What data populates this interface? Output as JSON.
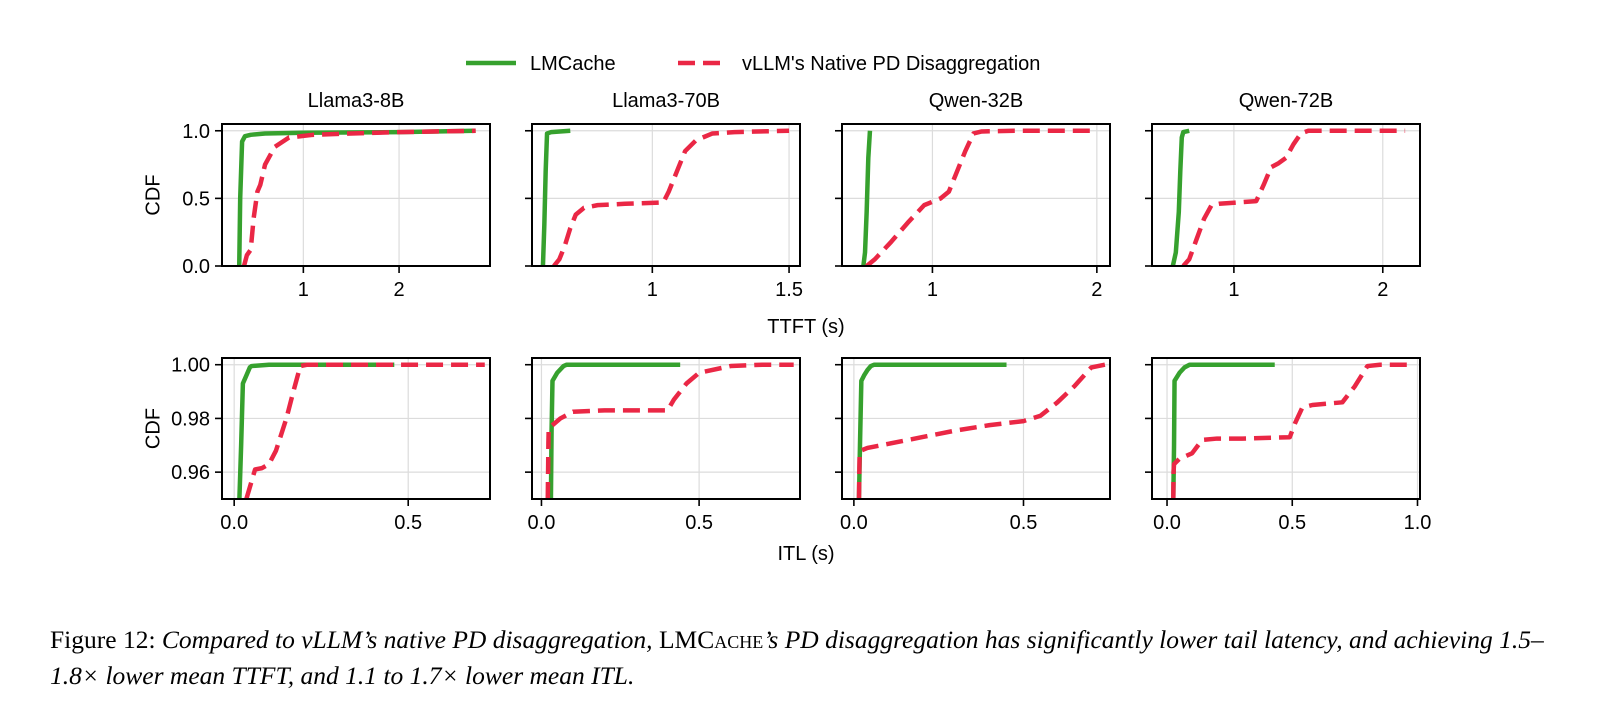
{
  "legend": {
    "items": [
      {
        "label": "LMCache",
        "color": "#36a12e",
        "dash": "solid"
      },
      {
        "label": "vLLM's Native PD Disaggregation",
        "color": "#ea2745",
        "dash": "dashed"
      }
    ],
    "placement": "top-center"
  },
  "chart_data": [
    {
      "type": "line",
      "title": "Llama3-8B",
      "row": "TTFT",
      "ylabel": "CDF",
      "xlabel": "",
      "xlim": [
        0.15,
        2.95
      ],
      "ylim": [
        0,
        1.05
      ],
      "xticks": [
        1,
        2
      ],
      "yticks": [
        0.0,
        0.5,
        1.0
      ],
      "ytick_labels": [
        "0.0",
        "0.5",
        "1.0"
      ],
      "grid": true,
      "series": [
        {
          "name": "LMCache",
          "x": [
            0.33,
            0.34,
            0.36,
            0.39,
            0.45,
            0.6,
            1.0,
            2.0,
            2.8
          ],
          "y": [
            0,
            0.5,
            0.92,
            0.96,
            0.97,
            0.98,
            0.985,
            0.99,
            1.0
          ]
        },
        {
          "name": "vLLM's Native PD Disaggregation",
          "x": [
            0.38,
            0.41,
            0.45,
            0.48,
            0.52,
            0.55,
            0.6,
            0.7,
            0.85,
            1.1,
            1.5,
            2.0,
            2.8
          ],
          "y": [
            0,
            0.08,
            0.12,
            0.35,
            0.55,
            0.6,
            0.75,
            0.88,
            0.95,
            0.97,
            0.98,
            0.99,
            1.0
          ]
        }
      ]
    },
    {
      "type": "line",
      "title": "Llama3-70B",
      "row": "TTFT",
      "ylabel": "",
      "xlabel": "",
      "xlim": [
        0.56,
        1.54
      ],
      "ylim": [
        0,
        1.05
      ],
      "xticks": [
        1.0,
        1.5
      ],
      "yticks": [
        0.0,
        0.5,
        1.0
      ],
      "grid": true,
      "series": [
        {
          "name": "LMCache",
          "x": [
            0.6,
            0.605,
            0.61,
            0.615,
            0.63,
            0.7
          ],
          "y": [
            0,
            0.3,
            0.7,
            0.98,
            0.99,
            1.0
          ]
        },
        {
          "name": "vLLM's Native PD Disaggregation",
          "x": [
            0.64,
            0.66,
            0.68,
            0.7,
            0.72,
            0.75,
            0.8,
            0.9,
            1.04,
            1.06,
            1.09,
            1.12,
            1.16,
            1.22,
            1.3,
            1.5
          ],
          "y": [
            0,
            0.05,
            0.15,
            0.28,
            0.38,
            0.43,
            0.45,
            0.46,
            0.47,
            0.55,
            0.7,
            0.85,
            0.93,
            0.98,
            0.99,
            1.0
          ]
        }
      ]
    },
    {
      "type": "line",
      "title": "Qwen-32B",
      "row": "TTFT",
      "ylabel": "",
      "xlabel": "",
      "xlim": [
        0.45,
        2.08
      ],
      "ylim": [
        0,
        1.05
      ],
      "xticks": [
        1,
        2
      ],
      "yticks": [
        0.0,
        0.5,
        1.0
      ],
      "grid": true,
      "series": [
        {
          "name": "LMCache",
          "x": [
            0.58,
            0.59,
            0.6,
            0.61,
            0.62
          ],
          "y": [
            0,
            0.1,
            0.4,
            0.8,
            1.0
          ]
        },
        {
          "name": "vLLM's Native PD Disaggregation",
          "x": [
            0.6,
            0.65,
            0.75,
            0.85,
            0.95,
            1.05,
            1.1,
            1.15,
            1.2,
            1.25,
            1.3,
            1.5,
            2.0
          ],
          "y": [
            0,
            0.05,
            0.18,
            0.32,
            0.45,
            0.5,
            0.55,
            0.7,
            0.85,
            0.98,
            0.995,
            1.0,
            1.0
          ]
        }
      ]
    },
    {
      "type": "line",
      "title": "Qwen-72B",
      "row": "TTFT",
      "ylabel": "",
      "xlabel": "",
      "xlim": [
        0.45,
        2.25
      ],
      "ylim": [
        0,
        1.05
      ],
      "xticks": [
        1,
        2
      ],
      "yticks": [
        0.0,
        0.5,
        1.0
      ],
      "grid": true,
      "series": [
        {
          "name": "LMCache",
          "x": [
            0.59,
            0.61,
            0.63,
            0.64,
            0.65,
            0.66,
            0.7
          ],
          "y": [
            0,
            0.1,
            0.4,
            0.7,
            0.95,
            0.99,
            1.0
          ]
        },
        {
          "name": "vLLM's Native PD Disaggregation",
          "x": [
            0.66,
            0.7,
            0.75,
            0.8,
            0.85,
            0.9,
            1.15,
            1.2,
            1.25,
            1.3,
            1.35,
            1.4,
            1.45,
            1.5,
            1.7,
            2.15
          ],
          "y": [
            0,
            0.05,
            0.2,
            0.35,
            0.45,
            0.46,
            0.48,
            0.6,
            0.73,
            0.76,
            0.8,
            0.9,
            0.98,
            1.0,
            1.0,
            1.0
          ]
        }
      ]
    },
    {
      "type": "line",
      "title": "",
      "row": "ITL",
      "ylabel": "CDF",
      "xlabel": "",
      "xlim": [
        -0.035,
        0.735
      ],
      "ylim": [
        0.95,
        1.0025
      ],
      "xticks": [
        0.0,
        0.5
      ],
      "yticks": [
        0.96,
        0.98,
        1.0
      ],
      "ytick_labels": [
        "0.96",
        "0.98",
        "1.00"
      ],
      "grid": true,
      "series": [
        {
          "name": "LMCache",
          "x": [
            0.015,
            0.02,
            0.025,
            0.035,
            0.045,
            0.05,
            0.1,
            0.25,
            0.46
          ],
          "y": [
            0.95,
            0.97,
            0.993,
            0.996,
            0.999,
            0.9995,
            1.0,
            1.0,
            1.0
          ]
        },
        {
          "name": "vLLM's Native PD Disaggregation",
          "x": [
            0.035,
            0.06,
            0.08,
            0.1,
            0.12,
            0.15,
            0.17,
            0.19,
            0.21,
            0.3,
            0.5,
            0.72
          ],
          "y": [
            0.95,
            0.961,
            0.9615,
            0.963,
            0.968,
            0.98,
            0.99,
            0.9995,
            1.0,
            1.0,
            1.0,
            1.0
          ]
        }
      ]
    },
    {
      "type": "line",
      "title": "",
      "row": "ITL",
      "ylabel": "",
      "xlabel": "",
      "xlim": [
        -0.03,
        0.82
      ],
      "ylim": [
        0.95,
        1.0025
      ],
      "xticks": [
        0.0,
        0.5
      ],
      "yticks": [
        0.96,
        0.98,
        1.0
      ],
      "grid": true,
      "series": [
        {
          "name": "LMCache",
          "x": [
            0.03,
            0.032,
            0.035,
            0.05,
            0.07,
            0.08,
            0.2,
            0.44
          ],
          "y": [
            0.95,
            0.975,
            0.994,
            0.997,
            0.9995,
            1.0,
            1.0,
            1.0
          ]
        },
        {
          "name": "vLLM's Native PD Disaggregation",
          "x": [
            0.02,
            0.021,
            0.022,
            0.023,
            0.03,
            0.06,
            0.1,
            0.2,
            0.4,
            0.42,
            0.46,
            0.5,
            0.6,
            0.7,
            0.8
          ],
          "y": [
            0.95,
            0.96,
            0.971,
            0.976,
            0.977,
            0.98,
            0.9825,
            0.983,
            0.983,
            0.987,
            0.993,
            0.997,
            0.9995,
            1.0,
            1.0
          ]
        }
      ]
    },
    {
      "type": "line",
      "title": "",
      "row": "ITL",
      "ylabel": "",
      "xlabel": "",
      "xlim": [
        -0.035,
        0.755
      ],
      "ylim": [
        0.95,
        1.0025
      ],
      "xticks": [
        0.0,
        0.5
      ],
      "yticks": [
        0.96,
        0.98,
        1.0
      ],
      "grid": true,
      "series": [
        {
          "name": "LMCache",
          "x": [
            0.015,
            0.018,
            0.022,
            0.03,
            0.04,
            0.05,
            0.06,
            0.2,
            0.45
          ],
          "y": [
            0.95,
            0.97,
            0.994,
            0.996,
            0.998,
            0.9995,
            1.0,
            1.0,
            1.0
          ]
        },
        {
          "name": "vLLM's Native PD Disaggregation",
          "x": [
            0.015,
            0.016,
            0.017,
            0.02,
            0.04,
            0.1,
            0.2,
            0.3,
            0.4,
            0.5,
            0.55,
            0.6,
            0.65,
            0.7,
            0.74
          ],
          "y": [
            0.95,
            0.96,
            0.967,
            0.968,
            0.969,
            0.9705,
            0.973,
            0.9755,
            0.9775,
            0.979,
            0.981,
            0.986,
            0.992,
            0.999,
            1.0
          ]
        }
      ]
    },
    {
      "type": "line",
      "title": "",
      "row": "ITL",
      "ylabel": "",
      "xlabel": "",
      "xlim": [
        -0.06,
        1.01
      ],
      "ylim": [
        0.95,
        1.0025
      ],
      "xticks": [
        0.0,
        0.5,
        1.0
      ],
      "yticks": [
        0.96,
        0.98,
        1.0
      ],
      "grid": true,
      "series": [
        {
          "name": "LMCache",
          "x": [
            0.025,
            0.028,
            0.03,
            0.05,
            0.07,
            0.09,
            0.2,
            0.43
          ],
          "y": [
            0.95,
            0.97,
            0.994,
            0.997,
            0.999,
            1.0,
            1.0,
            1.0
          ]
        },
        {
          "name": "vLLM's Native PD Disaggregation",
          "x": [
            0.025,
            0.026,
            0.028,
            0.05,
            0.1,
            0.14,
            0.2,
            0.3,
            0.49,
            0.51,
            0.54,
            0.58,
            0.7,
            0.75,
            0.8,
            0.85,
            0.97
          ],
          "y": [
            0.95,
            0.96,
            0.963,
            0.965,
            0.967,
            0.972,
            0.9725,
            0.9725,
            0.973,
            0.978,
            0.984,
            0.985,
            0.986,
            0.992,
            0.9995,
            1.0,
            1.0
          ]
        }
      ]
    }
  ],
  "axis_labels": {
    "ttft_xlabel": "TTFT (s)",
    "itl_xlabel": "ITL (s)"
  },
  "caption": {
    "label": "Figure 12:",
    "text1": " Compared to vLLM’s native PD disaggregation, ",
    "lmc_big": "LMC",
    "lmc_small": "ache",
    "text2": "’s PD disaggregation has significantly lower tail latency, and achieving 1.5–1.8× lower mean TTFT, and 1.1 to 1.7× lower mean ITL."
  }
}
